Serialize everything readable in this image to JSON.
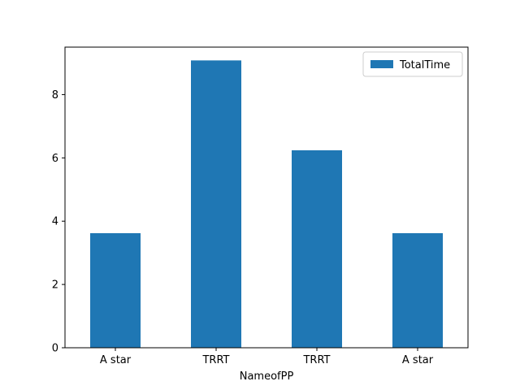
{
  "chart_data": {
    "type": "bar",
    "title": "",
    "xlabel": "NameofPP",
    "ylabel": "",
    "categories": [
      "A star",
      "TRRT",
      "TRRT",
      "A star"
    ],
    "series": [
      {
        "name": "TotalTime",
        "values": [
          3.62,
          9.08,
          6.24,
          3.62
        ]
      }
    ],
    "ylim": [
      0,
      9.5
    ],
    "yticks": [
      0,
      2,
      4,
      6,
      8
    ],
    "ytick_labels": [
      "0",
      "2",
      "4",
      "6",
      "8"
    ],
    "grid": false,
    "legend": {
      "position": "top-right",
      "entries": [
        "TotalTime"
      ]
    },
    "colors": {
      "bar": "#1f77b4",
      "axis": "#000000",
      "legend_border": "#cccccc"
    }
  }
}
